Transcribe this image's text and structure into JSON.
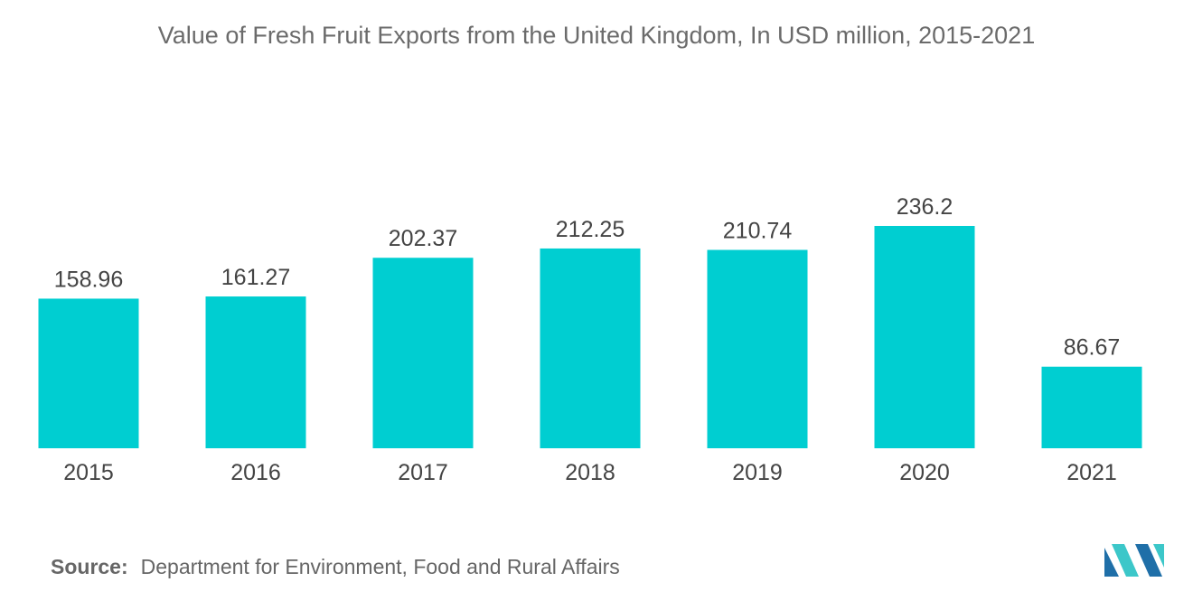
{
  "source": {
    "label": "Source:",
    "text": "Department for Environment, Food and Rural Affairs"
  },
  "colors": {
    "bar": "#00CED1",
    "logo_dark": "#1f6fa8",
    "logo_light": "#3cc7c9"
  },
  "chart_data": {
    "type": "bar",
    "title": "Value of Fresh Fruit Exports from the United Kingdom, In USD million, 2015-2021",
    "xlabel": "",
    "ylabel": "",
    "categories": [
      "2015",
      "2016",
      "2017",
      "2018",
      "2019",
      "2020",
      "2021"
    ],
    "values": [
      158.96,
      161.27,
      202.37,
      212.25,
      210.74,
      236.2,
      86.67
    ],
    "value_labels": [
      "158.96",
      "161.27",
      "202.37",
      "212.25",
      "210.74",
      "236.2",
      "86.67"
    ],
    "ylim": [
      0,
      236.2
    ],
    "grid": false,
    "legend": "none"
  }
}
